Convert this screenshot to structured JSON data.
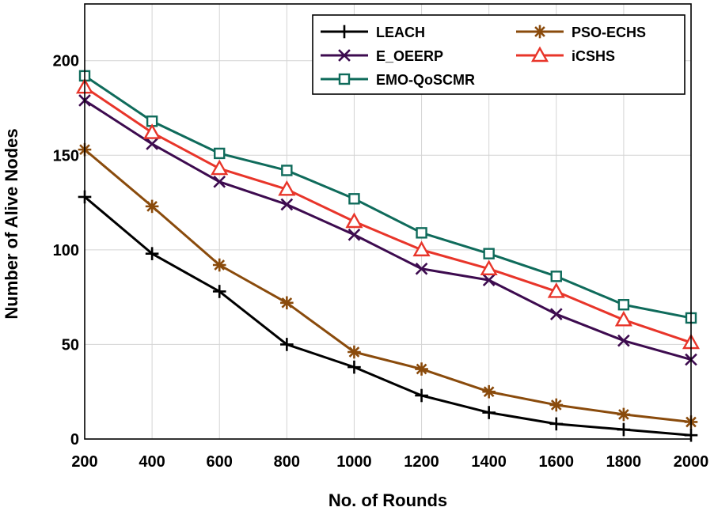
{
  "chart_data": {
    "type": "line",
    "title": "",
    "xlabel": "No. of Rounds",
    "ylabel": "Number of Alive Nodes",
    "x": [
      200,
      400,
      600,
      800,
      1000,
      1200,
      1400,
      1600,
      1800,
      2000
    ],
    "xlim": [
      200,
      2000
    ],
    "ylim": [
      0,
      230
    ],
    "xticks": [
      200,
      400,
      600,
      800,
      1000,
      1200,
      1400,
      1600,
      1800,
      2000
    ],
    "yticks": [
      0,
      50,
      100,
      150,
      200
    ],
    "grid": true,
    "legend_position": "top-right",
    "series": [
      {
        "name": "LEACH",
        "color": "#000000",
        "marker": "plus",
        "values": [
          128,
          98,
          78,
          50,
          38,
          23,
          14,
          8,
          5,
          2
        ]
      },
      {
        "name": "E_OEERP",
        "color": "#3d0b4f",
        "marker": "x",
        "values": [
          179,
          156,
          136,
          124,
          108,
          90,
          84,
          66,
          52,
          42
        ]
      },
      {
        "name": "EMO-QoSCMR",
        "color": "#0f6b5b",
        "marker": "square",
        "values": [
          192,
          168,
          151,
          142,
          127,
          109,
          98,
          86,
          71,
          64
        ]
      },
      {
        "name": "PSO-ECHS",
        "color": "#8a4b0c",
        "marker": "asterisk",
        "values": [
          153,
          123,
          92,
          72,
          46,
          37,
          25,
          18,
          13,
          9
        ]
      },
      {
        "name": "iCSHS",
        "color": "#e8352a",
        "marker": "triangle",
        "values": [
          186,
          162,
          143,
          132,
          115,
          100,
          90,
          78,
          63,
          51
        ]
      }
    ]
  }
}
